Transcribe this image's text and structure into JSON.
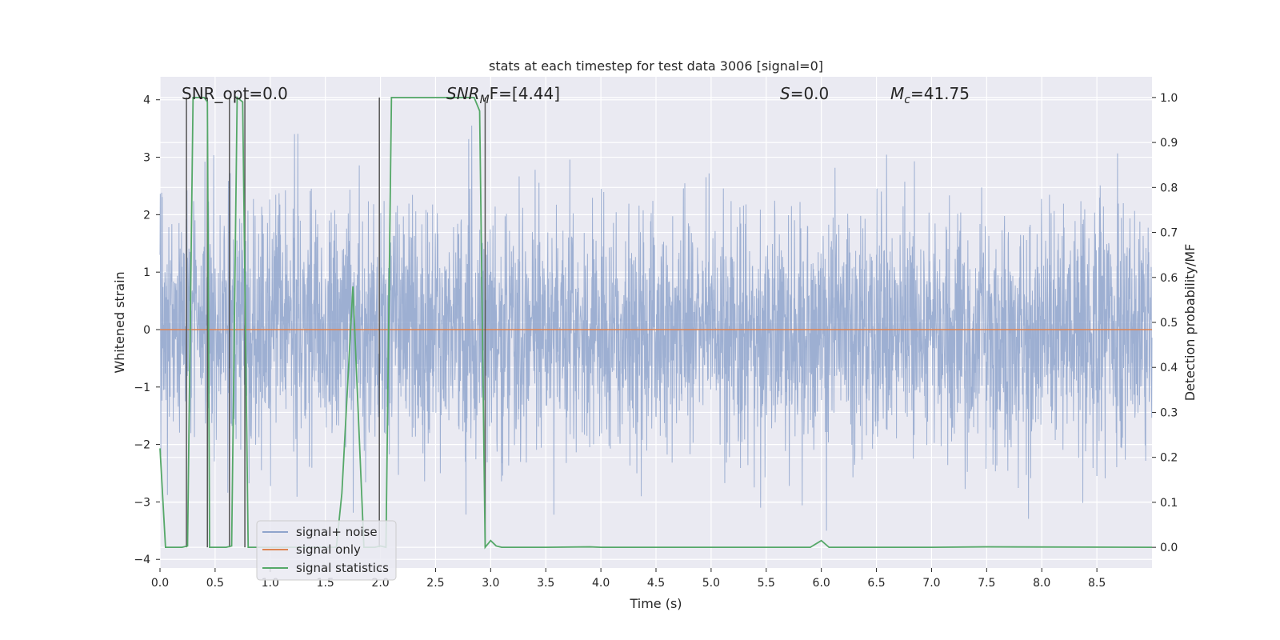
{
  "chart_data": {
    "type": "line",
    "title": "stats at each timestep for test data 3006 [signal=0]",
    "xlabel": "Time (s)",
    "ylabel": "Whitened strain",
    "y2label": "Detection probability/MF",
    "xlim": [
      0.0,
      9.0
    ],
    "ylim": [
      -4.15,
      4.4
    ],
    "y2lim": [
      -0.046,
      1.046
    ],
    "xticks": [
      "0.0",
      "0.5",
      "1.0",
      "1.5",
      "2.0",
      "2.5",
      "3.0",
      "3.5",
      "4.0",
      "4.5",
      "5.0",
      "5.5",
      "6.0",
      "6.5",
      "7.0",
      "7.5",
      "8.0",
      "8.5"
    ],
    "yticks": [
      "−4",
      "−3",
      "−2",
      "−1",
      "0",
      "1",
      "2",
      "3",
      "4"
    ],
    "y2ticks": [
      "0.0",
      "0.1",
      "0.2",
      "0.3",
      "0.4",
      "0.5",
      "0.6",
      "0.7",
      "0.8",
      "0.9",
      "1.0"
    ],
    "annotations": {
      "snr_opt": "SNR_opt=0.0",
      "snr_mf_main": "SNR",
      "snr_mf_sub": "M",
      "snr_mf_rest": "F=[4.44]",
      "s_main": "S",
      "s_rest": "=0.0",
      "mc_main": "M",
      "mc_sub": "c",
      "mc_rest": "=41.75"
    },
    "legend": {
      "position": "lower-left",
      "entries": [
        "signal+ noise",
        "signal only",
        "signal statistics"
      ]
    },
    "colors": {
      "signal_noise": "#8fa4cc",
      "signal_only": "#dd8452",
      "signal_statistics": "#55a868",
      "background": "#eaeaf2",
      "grid": "#ffffff",
      "spike": "#555555"
    },
    "series": [
      {
        "name": "signal+ noise",
        "description_stats": {
          "amplitude_envelope": 2.2,
          "max_peak": 3.55,
          "min_peak": -3.5
        }
      },
      {
        "name": "signal only",
        "x": [
          0.0,
          9.0
        ],
        "values": [
          0.0,
          0.0
        ]
      },
      {
        "name": "signal statistics",
        "x": [
          0.0,
          0.05,
          0.1,
          0.2,
          0.25,
          0.3,
          0.4,
          0.43,
          0.45,
          0.5,
          0.6,
          0.65,
          0.7,
          0.75,
          0.8,
          1.0,
          1.6,
          1.65,
          1.75,
          1.85,
          1.95,
          2.0,
          2.05,
          2.1,
          2.6,
          2.85,
          2.9,
          2.95,
          3.0,
          3.05,
          3.1,
          3.2,
          3.5,
          3.9,
          4.0,
          5.8,
          5.9,
          6.0,
          6.07,
          6.5,
          7.0,
          7.5,
          9.0
        ],
        "values": [
          0.22,
          0.0,
          0.0,
          0.0,
          0.003,
          1.0,
          1.0,
          0.99,
          0.0,
          0.0,
          0.0,
          0.003,
          1.0,
          0.99,
          0.0,
          0.0,
          0.0,
          0.12,
          0.58,
          0.0,
          0.0,
          0.003,
          0.0,
          1.0,
          1.0,
          1.0,
          0.97,
          0.0,
          0.015,
          0.003,
          0.0,
          0.0,
          0.0,
          0.001,
          0.0,
          0.0,
          0.0,
          0.015,
          0.0,
          0.0,
          0.0,
          0.001,
          0.0
        ]
      },
      {
        "name": "decision spikes",
        "x": [
          0.24,
          0.43,
          0.63,
          0.77,
          1.99,
          2.95
        ],
        "values": [
          1.0,
          1.0,
          1.0,
          1.0,
          1.0,
          1.0
        ]
      }
    ]
  }
}
